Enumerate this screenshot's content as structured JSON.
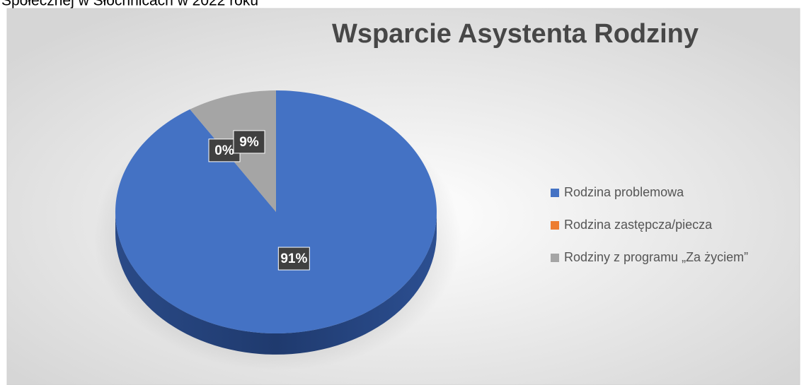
{
  "caption": "Społecznej w Słochnicach w 2022 roku",
  "chart_data": {
    "type": "pie",
    "title": "Wsparcie Asystenta Rodziny",
    "categories": [
      "Rodzina problemowa",
      "Rodzina zastępcza/piecza",
      "Rodziny z programu „Za życiem”"
    ],
    "values": [
      91,
      0,
      9
    ],
    "value_labels": [
      "91%",
      "0%",
      "9%"
    ],
    "colors": [
      "#4472c4",
      "#ed7d31",
      "#a5a5a5"
    ],
    "legend": "right"
  }
}
